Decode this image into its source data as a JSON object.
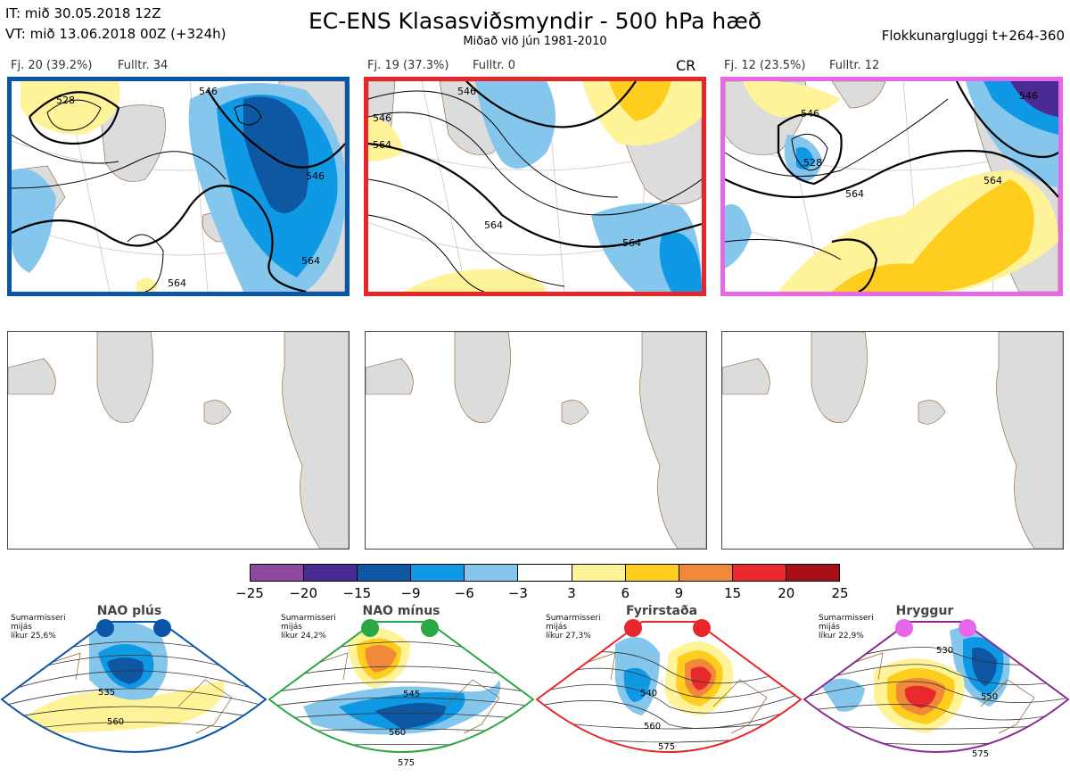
{
  "header": {
    "it_line": "IT: mið 30.05.2018 12Z",
    "vt_line": "VT: mið 13.06.2018 00Z  (+324h)",
    "title": "EC-ENS Klasasviðsmyndir - 500 hPa hæð",
    "subtitle": "Miðað við jún 1981-2010",
    "window": "Flokkunargluggi t+264-360"
  },
  "clusters": [
    {
      "count": "Fj. 20 (39.2%)",
      "rep": "Fulltr. 34",
      "tag": "",
      "border_color": "#0a55a5",
      "contour_labels": [
        "528",
        "546",
        "564",
        "546",
        "564"
      ]
    },
    {
      "count": "Fj. 19 (37.3%)",
      "rep": "Fulltr. 0",
      "tag": "CR",
      "border_color": "#e8262a",
      "contour_labels": [
        "546",
        "564",
        "564",
        "564",
        "546"
      ]
    },
    {
      "count": "Fj. 12 (23.5%)",
      "rep": "Fulltr. 12",
      "tag": "",
      "border_color": "#e866e8",
      "contour_labels": [
        "546",
        "528",
        "564",
        "546",
        "564"
      ]
    }
  ],
  "colorbar": {
    "colors": [
      "#8e489e",
      "#4a2b93",
      "#0d57a3",
      "#0f99e4",
      "#84c6ec",
      "#ffffff",
      "#fff39a",
      "#ffcd1e",
      "#f08a3a",
      "#e9292e",
      "#a50f15"
    ],
    "ticks": [
      "−25",
      "−20",
      "−15",
      "−9",
      "−6",
      "−3",
      "3",
      "6",
      "9",
      "15",
      "20",
      "25"
    ]
  },
  "regimes": [
    {
      "name": "NAO plús",
      "info": "Sumarmisseri\nmijás\nlíkur 25,6%",
      "color": "#0a55a5",
      "labels": [
        "535",
        "560"
      ]
    },
    {
      "name": "NAO mínus",
      "info": "Sumarmisseri\nmijás\nlíkur 24,2%",
      "color": "#2aa845",
      "labels": [
        "545",
        "560",
        "575"
      ]
    },
    {
      "name": "Fyrirstaða",
      "info": "Sumarmisseri\nmijás\nlíkur 27,3%",
      "color": "#e8262a",
      "labels": [
        "540",
        "560",
        "575"
      ]
    },
    {
      "name": "Hryggur",
      "info": "Sumarmisseri\nmijás\nlíkur 22,9%",
      "color": "#e866e8",
      "labels": [
        "530",
        "550",
        "575"
      ]
    }
  ]
}
